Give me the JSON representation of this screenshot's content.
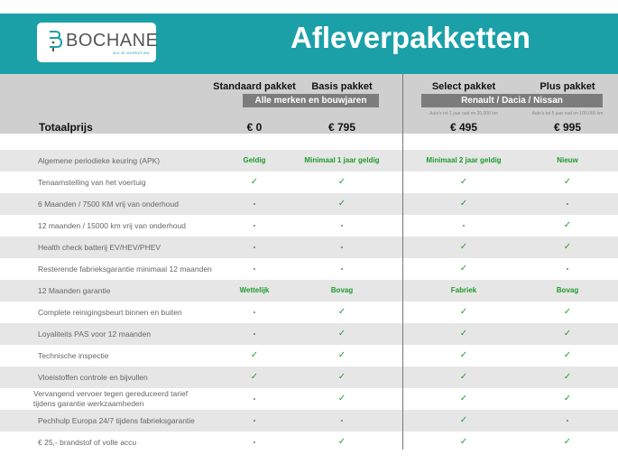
{
  "header": {
    "logo_text": "BOCHANE",
    "logo_tagline": "ALS JE VOORUIT WIL",
    "title": "Afleverpakketten",
    "color": "#1ca0a8"
  },
  "packages": [
    {
      "name": "Standaard pakket",
      "price": "€ 0"
    },
    {
      "name": "Basis pakket",
      "price": "€ 795"
    },
    {
      "name": "Select pakket",
      "price": "€ 495",
      "note": "Auto's tot 1 jaar oud en 20.000 km"
    },
    {
      "name": "Plus pakket",
      "price": "€ 995",
      "note": "Auto's tot 5 jaar oud en 100.000 km"
    }
  ],
  "groups": [
    "Alle merken en bouwjaren",
    "Renault / Dacia / Nissan"
  ],
  "total_label": "Totaalprijs",
  "rows": [
    {
      "label": "Algemene periodieke keuring (APK)",
      "values": [
        "Geldig",
        "Minimaal 1 jaar geldig",
        "Minimaal 2 jaar geldig",
        "Nieuw"
      ]
    },
    {
      "label": "Tenaamstelling van het voertuig",
      "values": [
        "✓",
        "✓",
        "✓",
        "✓"
      ]
    },
    {
      "label": "6 Maanden / 7500 KM vrij van onderhoud",
      "values": [
        "-",
        "✓",
        "✓",
        "-"
      ]
    },
    {
      "label": "12 maanden / 15000 km vrij van onderhoud",
      "values": [
        "-",
        "-",
        "-",
        "✓"
      ]
    },
    {
      "label": "Health check batterij EV/HEV/PHEV",
      "values": [
        "-",
        "-",
        "✓",
        "✓"
      ]
    },
    {
      "label": "Resterende fabrieksgarantie minimaal 12 maanden",
      "values": [
        "-",
        "-",
        "✓",
        "-"
      ]
    },
    {
      "label": "12 Maanden  garantie",
      "values": [
        "Wettelijk",
        "Bovag",
        "Fabriek",
        "Bovag"
      ]
    },
    {
      "label": "Complete reinigingsbeurt binnen en buiten",
      "values": [
        "-",
        "✓",
        "✓",
        "✓"
      ]
    },
    {
      "label": "Loyaliteits PAS voor 12 maanden",
      "values": [
        "-",
        "✓",
        "✓",
        "✓"
      ]
    },
    {
      "label": "Technische inspectie",
      "values": [
        "✓",
        "✓",
        "✓",
        "✓"
      ]
    },
    {
      "label": "Vloeistoffen controle en bijvullen",
      "values": [
        "✓",
        "✓",
        "✓",
        "✓"
      ]
    },
    {
      "label": "Vervangend vervoer tegen gereduceerd tarief tijdens garantie werkzaamheden",
      "values": [
        "-",
        "✓",
        "✓",
        "✓"
      ]
    },
    {
      "label": "Pechhulp Europa 24/7 tijdens fabrieksgarantie",
      "values": [
        "-",
        "-",
        "✓",
        "-"
      ]
    },
    {
      "label": "€ 25,- brandstof of  volle accu",
      "values": [
        "-",
        "✓",
        "✓",
        "✓"
      ]
    }
  ]
}
